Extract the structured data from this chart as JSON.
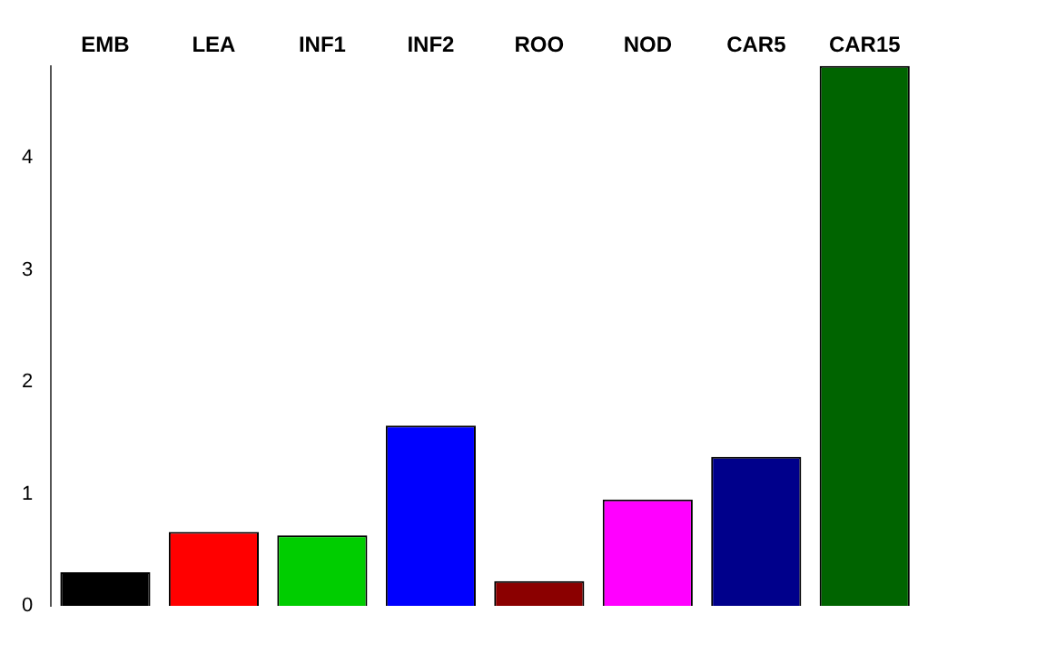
{
  "chart_data": {
    "type": "bar",
    "categories": [
      "EMB",
      "LEA",
      "INF1",
      "INF2",
      "ROO",
      "NOD",
      "CAR5",
      "CAR15"
    ],
    "values": [
      0.3,
      0.66,
      0.63,
      1.61,
      0.22,
      0.95,
      1.33,
      4.82
    ],
    "colors": [
      "#000000",
      "#ff0000",
      "#00cd00",
      "#0000ff",
      "#8b0000",
      "#ff00ff",
      "#00008b",
      "#006400"
    ],
    "ylim": [
      0,
      4.82
    ],
    "yticks": [
      0,
      1,
      2,
      3,
      4
    ],
    "grid": false,
    "legend": false
  }
}
